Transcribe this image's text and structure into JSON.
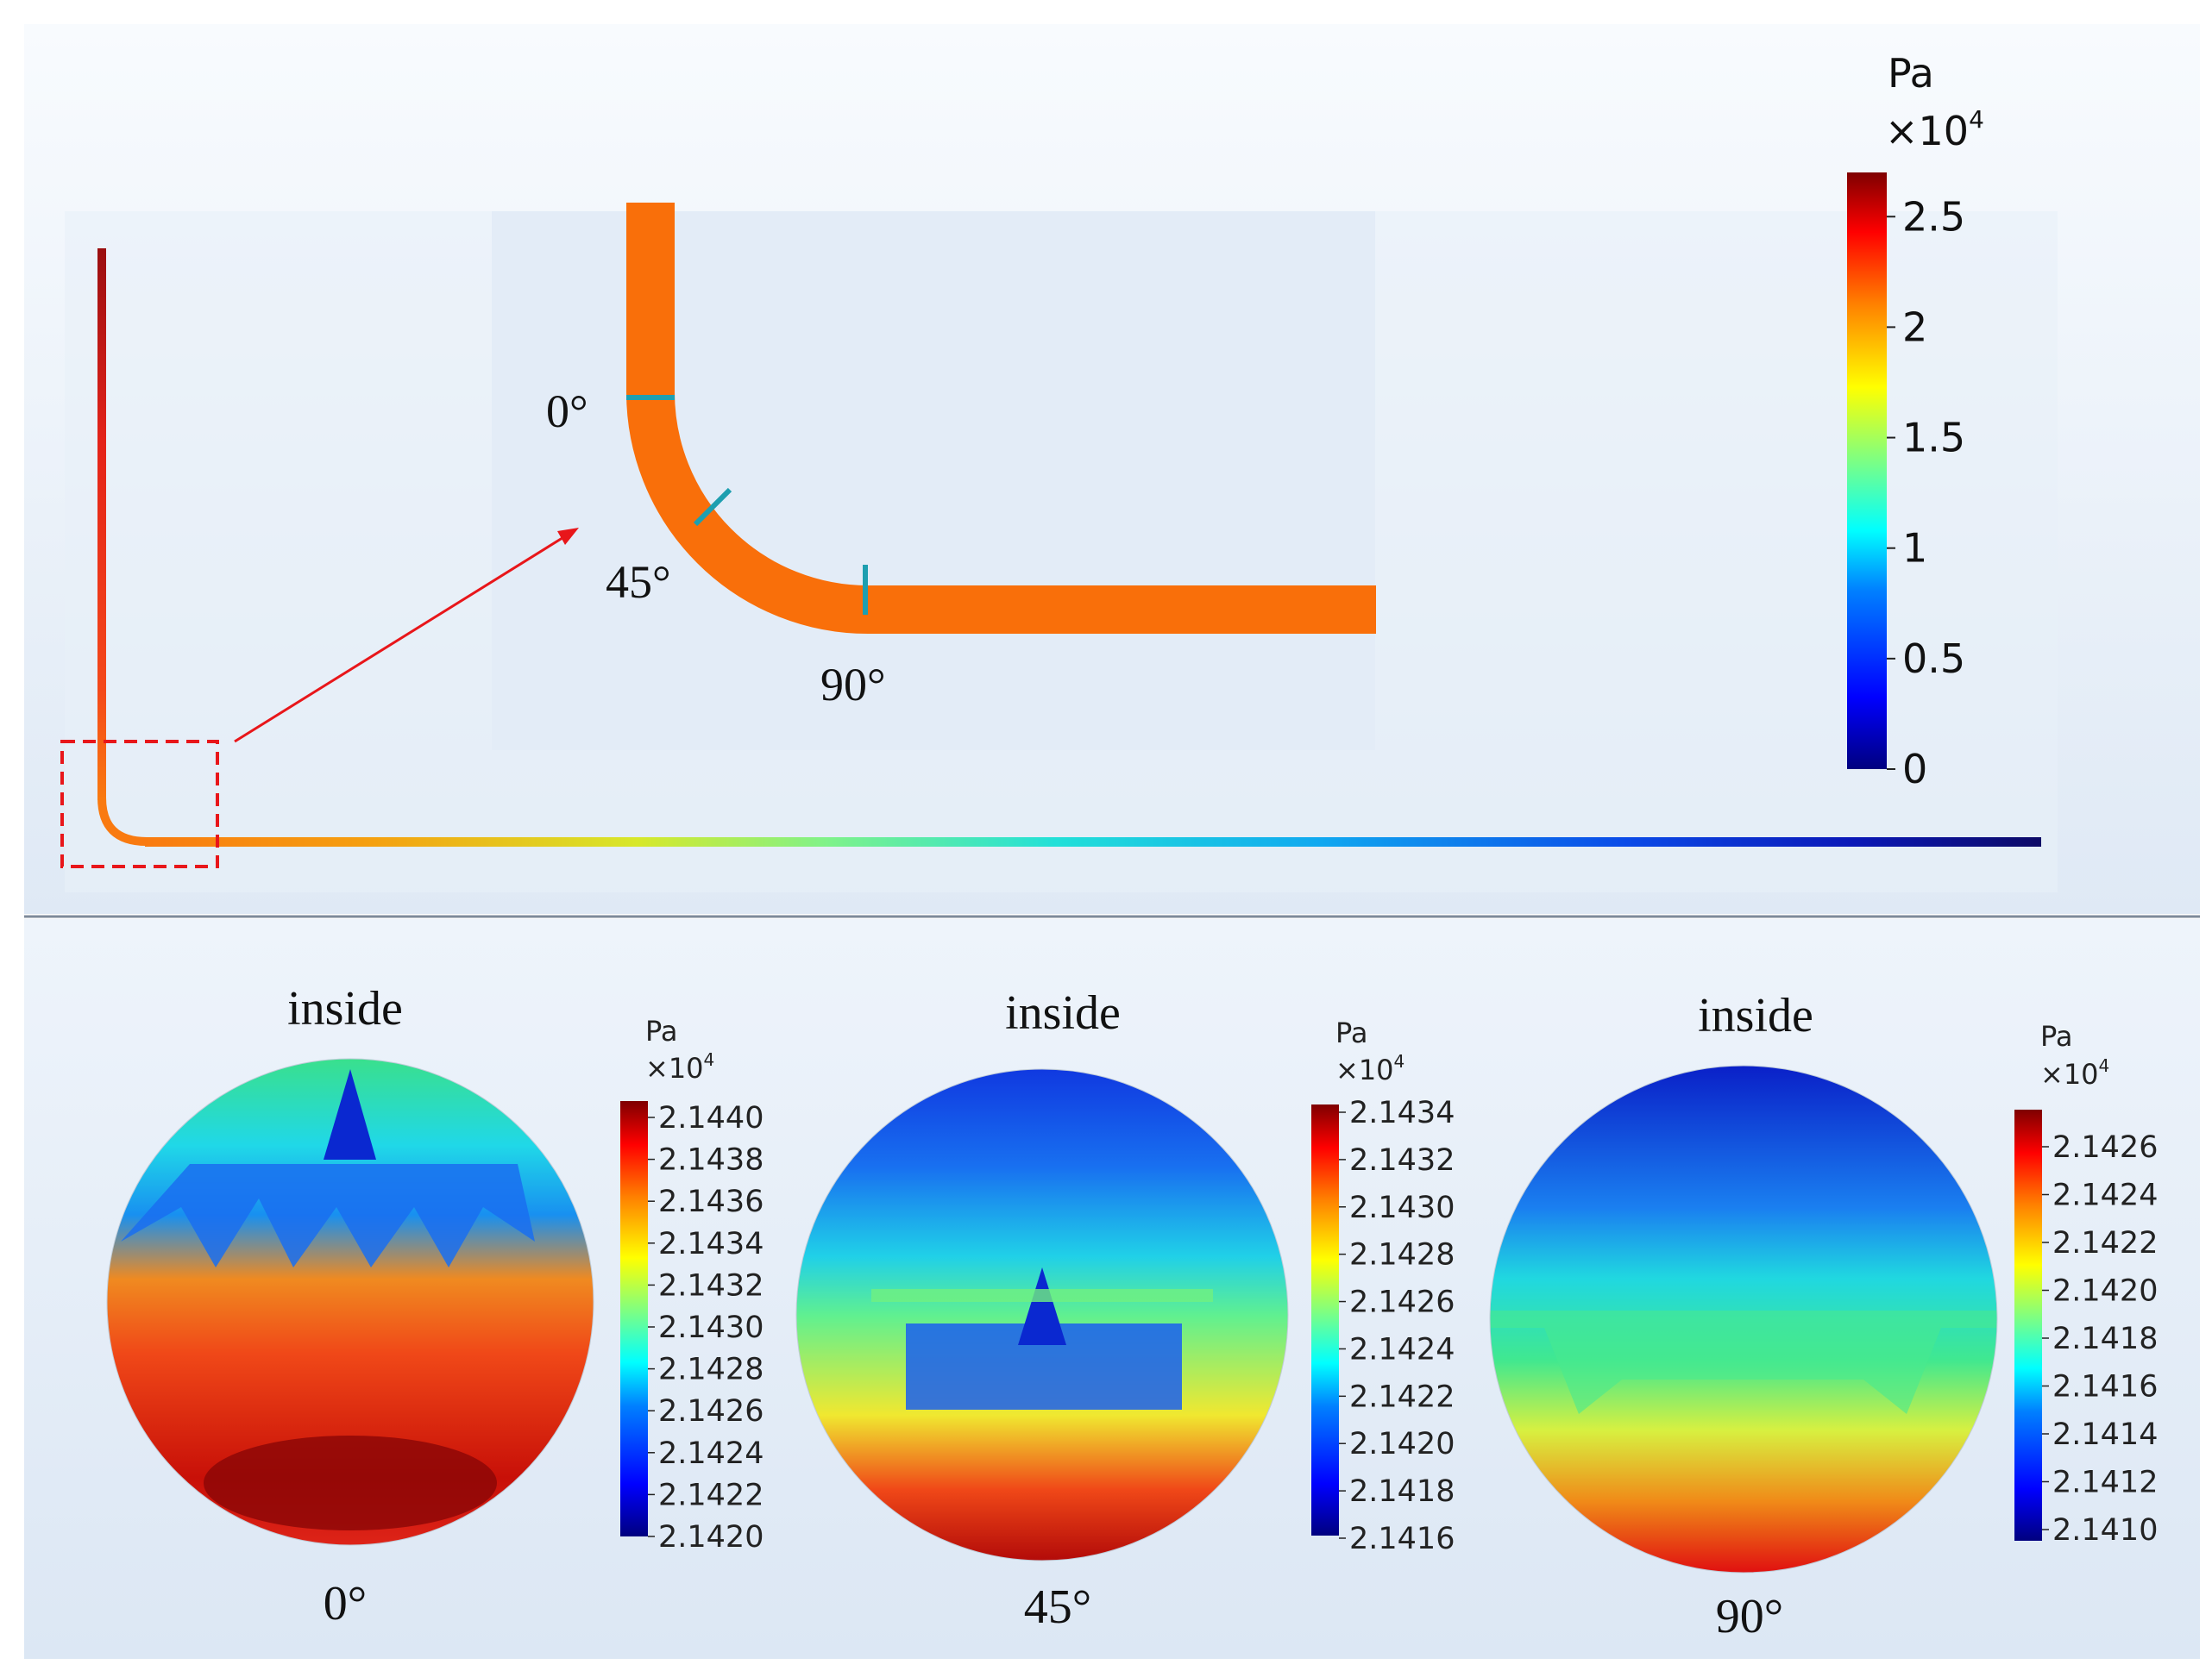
{
  "top_panel": {
    "unit": "Pa",
    "multiplier_base": "×10",
    "multiplier_exp": "4",
    "colorbar_ticks": [
      "2.5",
      "2",
      "1.5",
      "1",
      "0.5",
      "0"
    ],
    "colorbar_max": 2.7
  },
  "zoom_inset": {
    "angle_labels": [
      "0°",
      "45°",
      "90°"
    ]
  },
  "sections": [
    {
      "angle": "0°",
      "side_label": "inside",
      "unit": "Pa",
      "multiplier_base": "×10",
      "multiplier_exp": "4",
      "ticks": [
        "2.1440",
        "2.1438",
        "2.1436",
        "2.1434",
        "2.1432",
        "2.1430",
        "2.1428",
        "2.1426",
        "2.1424",
        "2.1422",
        "2.1420"
      ]
    },
    {
      "angle": "45°",
      "side_label": "inside",
      "unit": "Pa",
      "multiplier_base": "×10",
      "multiplier_exp": "4",
      "ticks": [
        "2.1434",
        "2.1432",
        "2.1430",
        "2.1428",
        "2.1426",
        "2.1424",
        "2.1422",
        "2.1420",
        "2.1418",
        "2.1416"
      ]
    },
    {
      "angle": "90°",
      "side_label": "inside",
      "unit": "Pa",
      "multiplier_base": "×10",
      "multiplier_exp": "4",
      "ticks": [
        "2.1426",
        "2.1424",
        "2.1422",
        "2.1420",
        "2.1418",
        "2.1416",
        "2.1414",
        "2.1412",
        "2.1410"
      ]
    }
  ],
  "colors": {
    "jet": [
      "#00007f",
      "#0000ff",
      "#0080ff",
      "#00ffff",
      "#80ff80",
      "#ffff00",
      "#ff8000",
      "#ff0000",
      "#7f0000"
    ],
    "pipe_orange": "#f96f0a",
    "marker_teal": "#1e9fb0",
    "arrow_red": "#e8161a"
  }
}
